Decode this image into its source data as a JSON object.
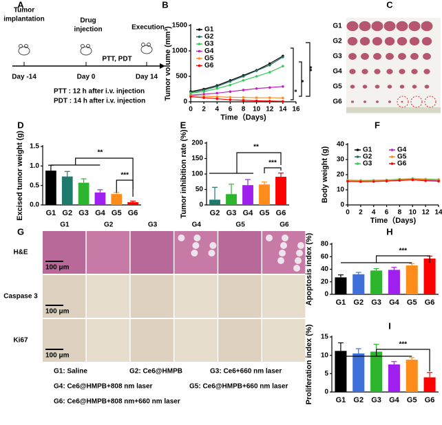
{
  "schematic": {
    "label": "A",
    "implantation": [
      "Tumor",
      "implantation"
    ],
    "injection": [
      "Drug",
      "injection"
    ],
    "execution": "Execution",
    "treatment": "PTT, PDT",
    "days": [
      "Day -14",
      "Day 0",
      "Day 14"
    ],
    "notes": [
      "PTT : 12 h after i.v. injection",
      "PDT : 14 h after i.v. injection"
    ]
  },
  "photo": {
    "label": "C",
    "rows": [
      "G1",
      "G2",
      "G3",
      "G4",
      "G5",
      "G6"
    ]
  },
  "histology": {
    "label": "G",
    "columns": [
      "G1",
      "G2",
      "G3",
      "G4",
      "G5",
      "G6"
    ],
    "rows": [
      "H&E",
      "Caspase 3",
      "Ki67"
    ],
    "scale_bars": [
      "100 μm",
      "100 μm",
      "100 μm"
    ],
    "legend": [
      "G1: Saline",
      "G2: Ce6@HMPB",
      "G3: Ce6+660 nm laser",
      "G4: Ce6@HMPB+808 nm laser",
      "G5: Ce6@HMPB+660 nm laser",
      "G6: Ce6@HMPB+808 nm+660 nm laser"
    ]
  },
  "chart_data": [
    {
      "type": "line",
      "label": "B",
      "ylabel": "Tumor volume (mm³)",
      "xlabel": "Time（Days)",
      "xlim": [
        0,
        16
      ],
      "xticks": [
        0,
        2,
        4,
        6,
        8,
        10,
        12,
        14,
        16
      ],
      "ylim": [
        0,
        1500
      ],
      "yticks": [
        0,
        500,
        1000,
        1500
      ],
      "x": [
        0,
        2,
        4,
        6,
        8,
        10,
        12,
        14
      ],
      "series": [
        {
          "name": "G1",
          "color": "#000000",
          "values": [
            200,
            250,
            320,
            420,
            520,
            620,
            750,
            900
          ]
        },
        {
          "name": "G2",
          "color": "#1f6f5f",
          "values": [
            180,
            230,
            300,
            400,
            500,
            610,
            720,
            880
          ]
        },
        {
          "name": "G3",
          "color": "#33cc55",
          "values": [
            170,
            200,
            260,
            330,
            420,
            500,
            580,
            700
          ]
        },
        {
          "name": "G4",
          "color": "#c020c0",
          "values": [
            130,
            150,
            170,
            200,
            230,
            260,
            280,
            300
          ]
        },
        {
          "name": "G5",
          "color": "#ff8c1a",
          "values": [
            120,
            110,
            100,
            90,
            85,
            80,
            80,
            75
          ]
        },
        {
          "name": "G6",
          "color": "#ff0000",
          "values": [
            100,
            80,
            60,
            40,
            30,
            20,
            15,
            10
          ]
        }
      ],
      "annotations": [
        "*",
        "*",
        "**"
      ]
    },
    {
      "type": "bar",
      "label": "D",
      "ylabel": "Excised tumor weight (g)",
      "ylim": [
        0,
        1.5
      ],
      "yticks": [
        {
          "value": 0,
          "label": "0.0"
        },
        0.5,
        {
          "value": 1,
          "label": "1.0"
        },
        1.5
      ],
      "categories": [
        "G1",
        "G2",
        "G3",
        "G4",
        "G5",
        "G6"
      ],
      "values": [
        0.88,
        0.73,
        0.57,
        0.32,
        0.28,
        0.07
      ],
      "errors": [
        0.14,
        0.13,
        0.1,
        0.07,
        0.04,
        0.03
      ],
      "colors": [
        "#000000",
        "#1f7a6e",
        "#2db52d",
        "#a020f0",
        "#ff8c1a",
        "#ff0000"
      ],
      "annotations": [
        "**",
        "***"
      ]
    },
    {
      "type": "bar",
      "label": "E",
      "ylabel": "Tumor inhibition rate (%)",
      "ylim": [
        0,
        200
      ],
      "yticks": [
        0,
        50,
        100,
        150,
        200
      ],
      "categories": [
        "G2",
        "G3",
        "G4",
        "G5",
        "G6"
      ],
      "values": [
        17,
        35,
        64,
        66,
        91
      ],
      "errors": [
        40,
        32,
        18,
        8,
        12
      ],
      "colors": [
        "#1f7a6e",
        "#2db52d",
        "#a020f0",
        "#ff8c1a",
        "#ff0000"
      ],
      "annotations": [
        "**",
        "***"
      ]
    },
    {
      "type": "line",
      "label": "F",
      "ylabel": "Body weight (g)",
      "xlabel": "Time（Days)",
      "xlim": [
        0,
        14
      ],
      "xticks": [
        0,
        2,
        4,
        6,
        8,
        10,
        12,
        14
      ],
      "ylim": [
        0,
        40
      ],
      "yticks": [
        0,
        10,
        20,
        30,
        40
      ],
      "x": [
        0,
        2,
        4,
        6,
        8,
        10,
        12,
        14
      ],
      "series": [
        {
          "name": "G1",
          "color": "#000000",
          "values": [
            16.2,
            16.0,
            16.1,
            16.4,
            16.8,
            17.2,
            16.9,
            16.6
          ]
        },
        {
          "name": "G2",
          "color": "#1f6f5f",
          "values": [
            16.0,
            15.8,
            15.9,
            16.2,
            16.6,
            17.0,
            16.7,
            16.4
          ]
        },
        {
          "name": "G3",
          "color": "#33cc55",
          "values": [
            16.4,
            16.2,
            16.3,
            16.5,
            17.0,
            17.4,
            17.1,
            16.8
          ]
        },
        {
          "name": "G4",
          "color": "#c020c0",
          "values": [
            15.8,
            15.6,
            15.7,
            16.0,
            16.4,
            16.8,
            16.5,
            16.2
          ]
        },
        {
          "name": "G5",
          "color": "#ff8c1a",
          "values": [
            16.1,
            15.9,
            16.0,
            16.3,
            16.7,
            17.1,
            16.8,
            16.5
          ]
        },
        {
          "name": "G6",
          "color": "#ff0000",
          "values": [
            15.6,
            15.4,
            15.5,
            15.8,
            16.2,
            16.6,
            16.0,
            15.7
          ]
        }
      ]
    },
    {
      "type": "bar",
      "label": "H",
      "ylabel": "Apoptosis index (%)",
      "ylim": [
        0,
        80
      ],
      "yticks": [
        0,
        20,
        40,
        60,
        80
      ],
      "categories": [
        "G1",
        "G2",
        "G3",
        "G4",
        "G5",
        "G6"
      ],
      "values": [
        27,
        32,
        38,
        39,
        46,
        57
      ],
      "errors": [
        4,
        3,
        3,
        4,
        3,
        4
      ],
      "colors": [
        "#000000",
        "#3f6fd8",
        "#2db52d",
        "#a020f0",
        "#ff8c1a",
        "#ff0000"
      ],
      "annotations": [
        "***"
      ]
    },
    {
      "type": "bar",
      "label": "I",
      "ylabel": "Proliferation index (%)",
      "ylim": [
        0,
        15
      ],
      "yticks": [
        0,
        5,
        10,
        15
      ],
      "categories": [
        "G1",
        "G2",
        "G3",
        "G4",
        "G5",
        "G6"
      ],
      "values": [
        11.2,
        10.5,
        11.0,
        7.5,
        8.8,
        4.0
      ],
      "errors": [
        2.2,
        1.3,
        2.0,
        0.8,
        0.6,
        1.3
      ],
      "colors": [
        "#000000",
        "#3f6fd8",
        "#2db52d",
        "#a020f0",
        "#ff8c1a",
        "#ff0000"
      ],
      "annotations": [
        "***"
      ]
    }
  ]
}
